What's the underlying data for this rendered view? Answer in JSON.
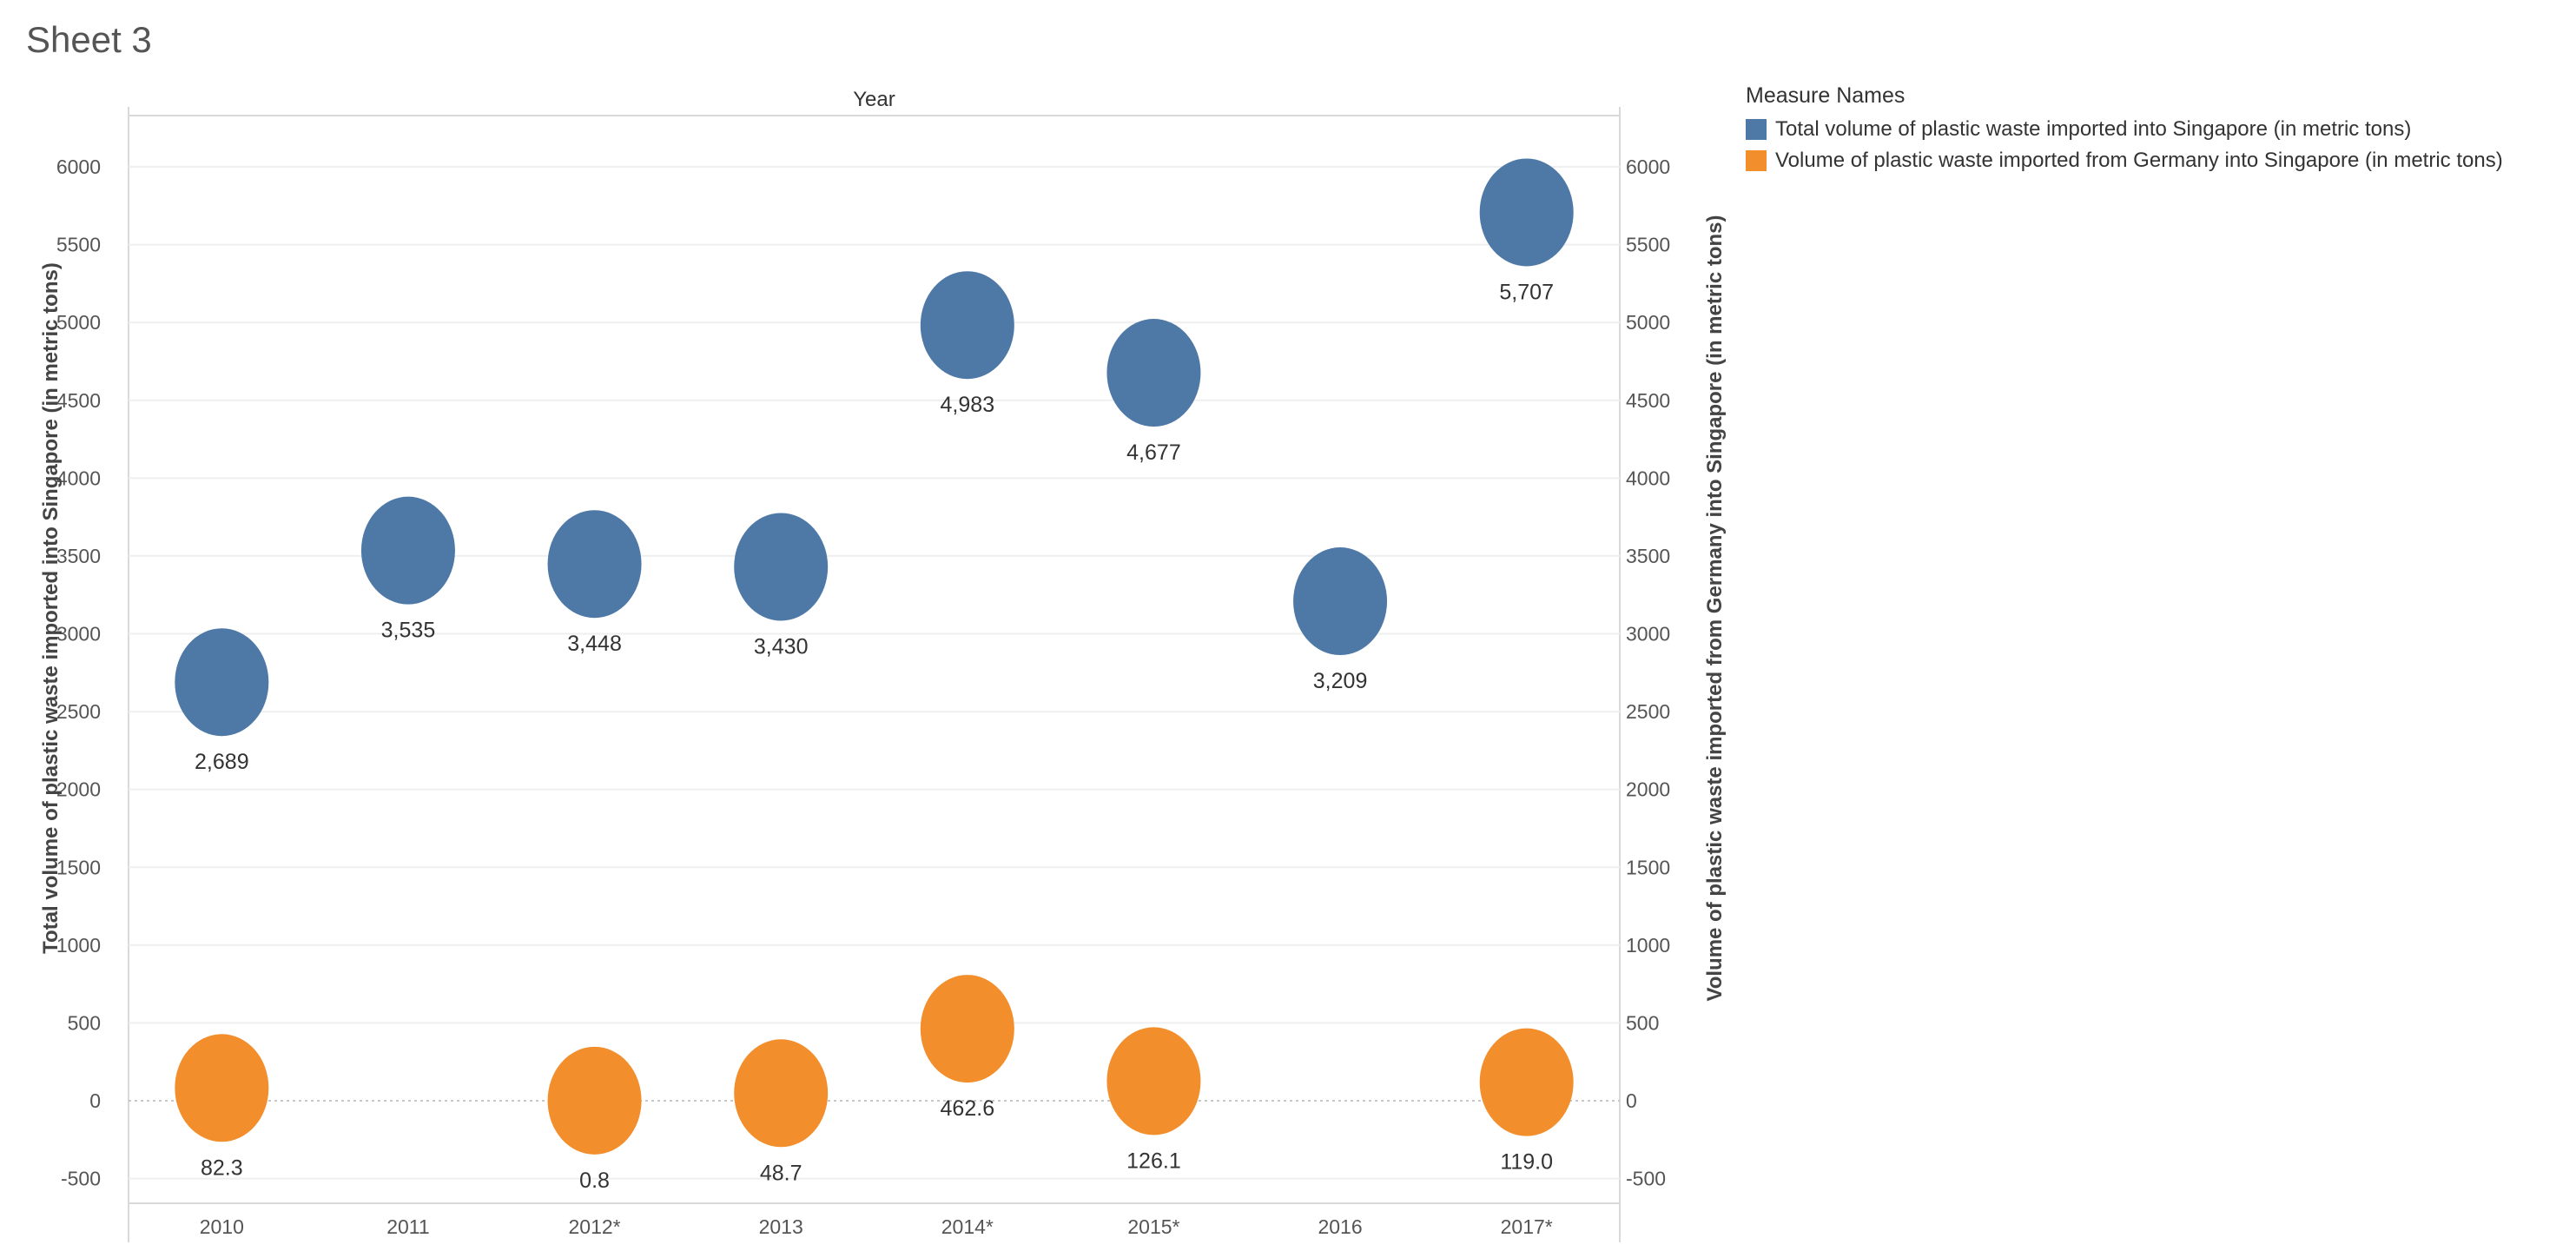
{
  "sheet_title": "Sheet 3",
  "chart_data": {
    "type": "scatter",
    "title": "Year",
    "xlabel": "",
    "ylabel": "Total volume of plastic waste imported into Singapore (in metric tons)",
    "ylabel_right": "Volume of plastic waste imported from Germany into Singapore (in metric tons)",
    "categories": [
      "2010",
      "2011",
      "2012*",
      "2013",
      "2014*",
      "2015*",
      "2016",
      "2017*"
    ],
    "ylim": [
      -600,
      6300
    ],
    "yticks": [
      "6000",
      "5500",
      "5000",
      "4500",
      "4000",
      "3500",
      "3000",
      "2500",
      "2000",
      "1500",
      "1000",
      "500",
      "0",
      "-500"
    ],
    "series": [
      {
        "name": "Total volume of plastic waste imported into Singapore (in metric tons)",
        "color": "#4e79a7",
        "values": [
          2689,
          3535,
          3448,
          3430,
          4983,
          4677,
          3209,
          5707
        ],
        "labels": [
          "2,689",
          "3,535",
          "3,448",
          "3,430",
          "4,983",
          "4,677",
          "3,209",
          "5,707"
        ]
      },
      {
        "name": "Volume of plastic waste imported from Germany into Singapore (in metric tons)",
        "color": "#f28e2b",
        "values": [
          82.3,
          null,
          0.8,
          48.7,
          462.6,
          126.1,
          null,
          119.0
        ],
        "labels": [
          "82.3",
          null,
          "0.8",
          "48.7",
          "462.6",
          "126.1",
          null,
          "119.0"
        ]
      }
    ],
    "legend": {
      "title": "Measure Names",
      "position": "top-right"
    }
  }
}
